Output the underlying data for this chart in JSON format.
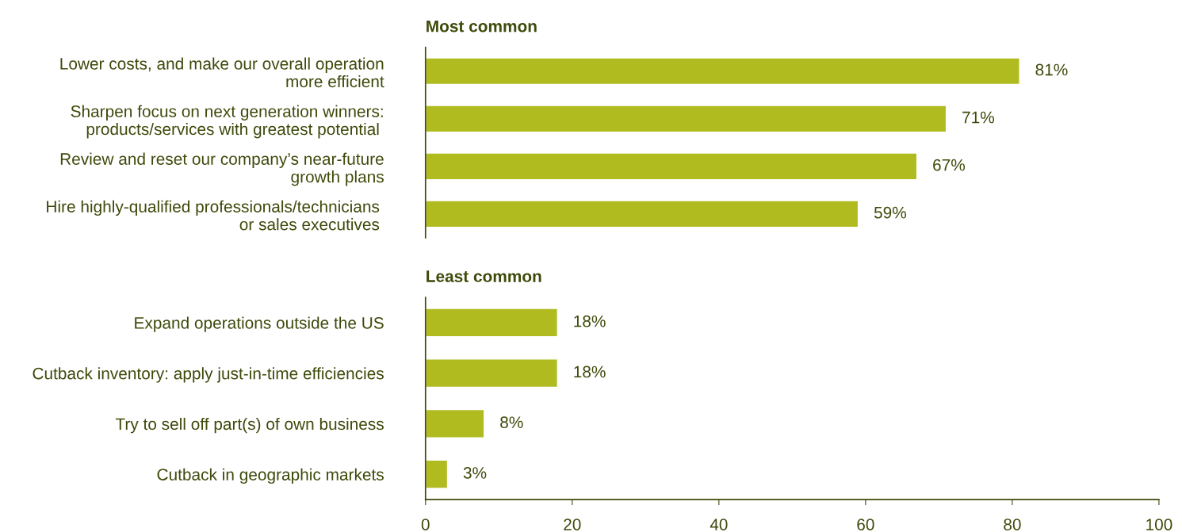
{
  "chart_data": [
    {
      "type": "bar",
      "orientation": "horizontal",
      "title": "Most common",
      "categories": [
        "Lower costs, and make our overall operation\nmore efficient",
        "Sharpen focus on next generation winners:\nproducts/services with greatest potential ",
        "Review and reset our company’s near-future\ngrowth plans",
        "Hire highly-qualified professionals/technicians \nor sales executives "
      ],
      "values": [
        81,
        71,
        67,
        59
      ],
      "value_labels": [
        "81%",
        "71%",
        "67%",
        "59%"
      ],
      "color": "#afbb1f",
      "xlim": [
        0,
        100
      ],
      "tick_labels": "y",
      "grid": false,
      "legend": false
    },
    {
      "type": "bar",
      "orientation": "horizontal",
      "title": "Least common",
      "categories": [
        "Expand operations outside the US",
        "Cutback inventory: apply just-in-time efficiencies",
        "Try to sell off part(s) of own business",
        "Cutback in geographic markets"
      ],
      "values": [
        18,
        18,
        8,
        3
      ],
      "value_labels": [
        "18%",
        "18%",
        "8%",
        "3%"
      ],
      "color": "#afbb1f",
      "xlim": [
        0,
        100
      ],
      "xticks": [
        0,
        20,
        40,
        60,
        80,
        100
      ],
      "grid": false,
      "legend": false
    }
  ]
}
